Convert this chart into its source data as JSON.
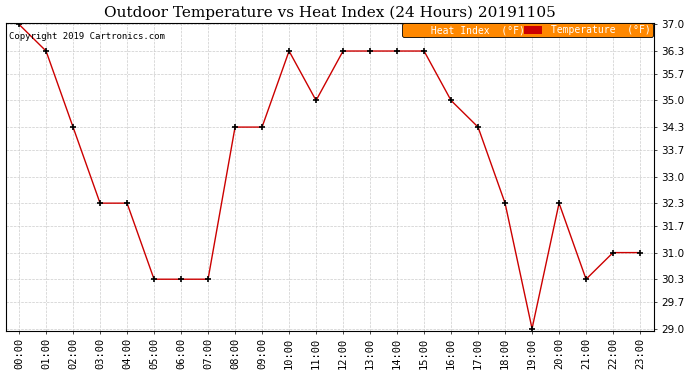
{
  "title": "Outdoor Temperature vs Heat Index (24 Hours) 20191105",
  "copyright": "Copyright 2019 Cartronics.com",
  "x_labels": [
    "00:00",
    "01:00",
    "02:00",
    "03:00",
    "04:00",
    "05:00",
    "06:00",
    "07:00",
    "08:00",
    "09:00",
    "10:00",
    "11:00",
    "12:00",
    "13:00",
    "14:00",
    "15:00",
    "16:00",
    "17:00",
    "18:00",
    "19:00",
    "20:00",
    "21:00",
    "22:00",
    "23:00"
  ],
  "temperature": [
    37.0,
    36.3,
    34.3,
    32.3,
    32.3,
    30.3,
    30.3,
    30.3,
    34.3,
    34.3,
    36.3,
    35.0,
    36.3,
    36.3,
    36.3,
    36.3,
    35.0,
    34.3,
    32.3,
    29.0,
    32.3,
    30.3,
    31.0,
    31.0
  ],
  "heat_index": [
    37.0,
    36.3,
    34.3,
    32.3,
    32.3,
    30.3,
    30.3,
    30.3,
    34.3,
    34.3,
    36.3,
    35.0,
    36.3,
    36.3,
    36.3,
    36.3,
    35.0,
    34.3,
    32.3,
    29.0,
    32.3,
    30.3,
    31.0,
    31.0
  ],
  "ylim_min": 29.0,
  "ylim_max": 37.0,
  "yticks": [
    29.0,
    29.7,
    30.3,
    31.0,
    31.7,
    32.3,
    33.0,
    33.7,
    34.3,
    35.0,
    35.7,
    36.3,
    37.0
  ],
  "line_color": "#cc0000",
  "heat_index_legend_bg": "#ff8800",
  "temp_legend_bg": "#cc0000",
  "background_color": "#ffffff",
  "plot_bg_color": "#ffffff",
  "grid_color": "#cccccc",
  "title_fontsize": 11,
  "tick_fontsize": 7.5,
  "copyright_fontsize": 6.5
}
